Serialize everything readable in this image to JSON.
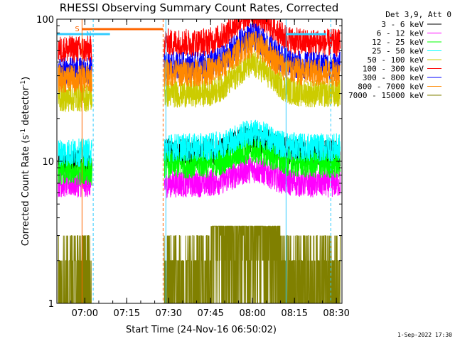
{
  "chart_data": {
    "type": "line",
    "title": "RHESSI Observing Summary Count Rates, Corrected",
    "xlabel": "Start Time (24-Nov-16 06:50:02)",
    "ylabel": "Corrected Count Rate (s⁻¹ detector⁻¹)",
    "ylabel_main": "Corrected Count Rate (s",
    "ylabel_sup1": "-1",
    "ylabel_mid": " detector",
    "ylabel_sup2": "-1",
    "ylabel_end": ")",
    "yscale": "log",
    "ylim": [
      1,
      100
    ],
    "xlim": [
      "06:50",
      "08:32"
    ],
    "x_ticks": [
      "07:00",
      "07:15",
      "07:30",
      "07:45",
      "08:00",
      "08:15",
      "08:30"
    ],
    "y_ticks": [
      "1",
      "10",
      "100"
    ],
    "legend_header": "Det 3,9, Att 0",
    "footer_date": "1-Sep-2022 17:30",
    "flags": [
      {
        "label": "S",
        "start": "06:59",
        "end": "07:28",
        "color": "#ff6600"
      },
      {
        "label": "N",
        "start": "07:03",
        "end": "07:09",
        "color": "#33ccff"
      }
    ],
    "data_gaps": [
      [
        "07:03",
        "07:28"
      ]
    ],
    "series": [
      {
        "name": "3 - 6 keV",
        "color": "#000000",
        "level_before": 9.5,
        "level_after": 11.5
      },
      {
        "name": "6 - 12 keV",
        "color": "#ff00ff",
        "level_before": 7.0,
        "level_after": 7.0
      },
      {
        "name": "12 - 25 keV",
        "color": "#00ff00",
        "level_before": 8.5,
        "level_after": 9.5
      },
      {
        "name": "25 - 50 keV",
        "color": "#00ffff",
        "level_before": 11.5,
        "level_after": 12.5
      },
      {
        "name": "50 - 100 keV",
        "color": "#cccc00",
        "level_before": 28,
        "level_after": 30
      },
      {
        "name": "100 - 300 keV",
        "color": "#ff0000",
        "level_before": 61,
        "level_after": 68
      },
      {
        "name": "300 - 800 keV",
        "color": "#0000ff",
        "level_before": 43,
        "level_after": 47
      },
      {
        "name": "800 - 7000 keV",
        "color": "#ff8800",
        "level_before": 38,
        "level_after": 42
      },
      {
        "name": "7000 - 15000 keV",
        "color": "#808000",
        "level_before": 1.7,
        "level_after": 1.7
      }
    ]
  }
}
